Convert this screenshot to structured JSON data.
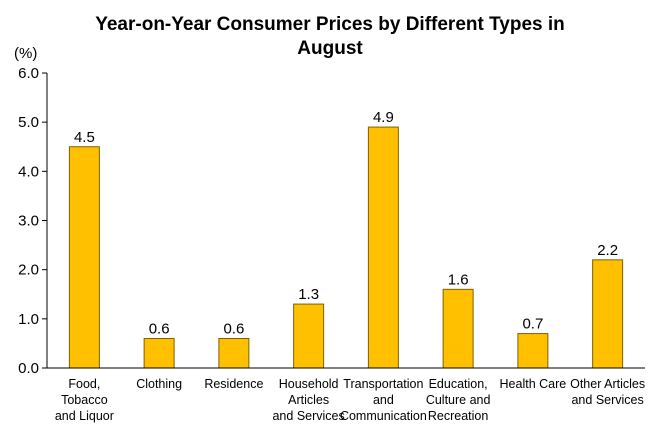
{
  "chart_data": {
    "type": "bar",
    "title_lines": [
      "Year-on-Year Consumer Prices by Different Types in",
      "August"
    ],
    "unit_label": "(%)",
    "categories": [
      [
        "Food,",
        "Tobacco",
        "and Liquor"
      ],
      [
        "Clothing"
      ],
      [
        "Residence"
      ],
      [
        "Household",
        "Articles",
        "and Services"
      ],
      [
        "Transportation",
        "and",
        "Communication"
      ],
      [
        "Education,",
        "Culture and",
        "Recreation"
      ],
      [
        "Health Care"
      ],
      [
        "Other Articles",
        "and Services"
      ]
    ],
    "values": [
      4.5,
      0.6,
      0.6,
      1.3,
      4.9,
      1.6,
      0.7,
      2.2
    ],
    "value_labels": [
      "4.5",
      "0.6",
      "0.6",
      "1.3",
      "4.9",
      "1.6",
      "0.7",
      "2.2"
    ],
    "yticks": [
      "0.0",
      "1.0",
      "2.0",
      "3.0",
      "4.0",
      "5.0",
      "6.0"
    ],
    "ylim": [
      0,
      6
    ],
    "grid": false,
    "legend": "none",
    "colors": {
      "bar_fill": "#FFC000",
      "bar_stroke": "#7F6000"
    }
  }
}
